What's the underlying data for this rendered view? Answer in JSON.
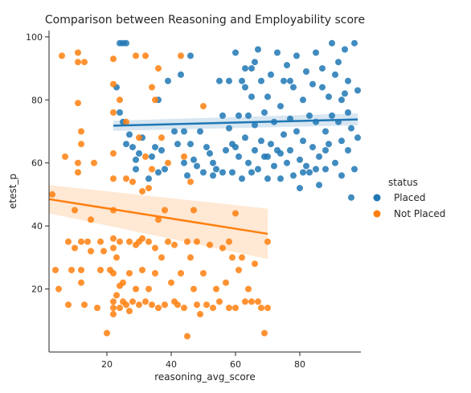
{
  "chart_data": {
    "type": "scatter",
    "title": "Comparison between Reasoning and Employability score",
    "xlabel": "reasoning_avg_score",
    "ylabel": "etest_p",
    "xlim": [
      2,
      99
    ],
    "ylim": [
      0,
      102
    ],
    "xticks": [
      20,
      40,
      60,
      80
    ],
    "yticks": [
      20,
      40,
      60,
      80,
      100
    ],
    "grid": false,
    "legend": {
      "title": "status",
      "placement": "right",
      "entries": [
        {
          "label": "Placed",
          "color": "#1f77b4"
        },
        {
          "label": "Not Placed",
          "color": "#ff7f0e"
        }
      ]
    },
    "series": [
      {
        "name": "Placed",
        "color": "#1f77b4",
        "regression": {
          "x": [
            22,
            98
          ],
          "y": [
            71.8,
            73.8
          ],
          "ci_low_start": 70.2,
          "ci_high_start": 73.4,
          "ci_low_end": 71.9,
          "ci_high_end": 75.7
        },
        "points": [
          [
            24,
            98
          ],
          [
            25,
            98
          ],
          [
            26,
            98
          ],
          [
            23,
            84
          ],
          [
            24,
            76
          ],
          [
            25,
            73
          ],
          [
            27,
            69
          ],
          [
            28,
            65
          ],
          [
            29,
            61
          ],
          [
            29,
            58
          ],
          [
            30,
            63
          ],
          [
            31,
            68
          ],
          [
            33,
            55
          ],
          [
            34,
            62
          ],
          [
            35,
            65
          ],
          [
            36,
            80
          ],
          [
            37,
            64
          ],
          [
            38,
            58
          ],
          [
            39,
            86
          ],
          [
            41,
            70
          ],
          [
            42,
            66
          ],
          [
            43,
            88
          ],
          [
            44,
            60
          ],
          [
            45,
            56
          ],
          [
            46,
            66
          ],
          [
            46,
            94
          ],
          [
            47,
            61
          ],
          [
            48,
            59
          ],
          [
            49,
            70
          ],
          [
            50,
            57
          ],
          [
            51,
            65
          ],
          [
            52,
            63
          ],
          [
            53,
            60
          ],
          [
            54,
            58
          ],
          [
            55,
            86
          ],
          [
            56,
            75
          ],
          [
            56,
            57
          ],
          [
            57,
            64
          ],
          [
            58,
            71
          ],
          [
            58,
            86
          ],
          [
            59,
            57
          ],
          [
            60,
            65
          ],
          [
            60,
            95
          ],
          [
            61,
            75
          ],
          [
            61,
            62
          ],
          [
            62,
            86
          ],
          [
            62,
            55
          ],
          [
            63,
            84
          ],
          [
            63,
            68
          ],
          [
            64,
            60
          ],
          [
            64,
            75
          ],
          [
            65,
            90
          ],
          [
            65,
            57
          ],
          [
            65,
            81
          ],
          [
            66,
            64
          ],
          [
            66,
            72
          ],
          [
            67,
            96
          ],
          [
            67,
            58
          ],
          [
            68,
            86
          ],
          [
            68,
            67
          ],
          [
            69,
            62
          ],
          [
            69,
            76
          ],
          [
            70,
            55
          ],
          [
            70,
            81
          ],
          [
            71,
            66
          ],
          [
            71,
            88
          ],
          [
            72,
            59
          ],
          [
            72,
            73
          ],
          [
            73,
            95
          ],
          [
            73,
            64
          ],
          [
            74,
            78
          ],
          [
            74,
            55
          ],
          [
            75,
            69
          ],
          [
            75,
            86
          ],
          [
            76,
            91
          ],
          [
            76,
            60
          ],
          [
            77,
            74
          ],
          [
            77,
            64
          ],
          [
            78,
            56
          ],
          [
            78,
            84
          ],
          [
            79,
            94
          ],
          [
            79,
            70
          ],
          [
            80,
            61
          ],
          [
            80,
            52
          ],
          [
            81,
            67
          ],
          [
            81,
            80
          ],
          [
            82,
            89
          ],
          [
            82,
            59
          ],
          [
            83,
            75
          ],
          [
            83,
            57
          ],
          [
            84,
            85
          ],
          [
            84,
            65
          ],
          [
            85,
            95
          ],
          [
            85,
            73
          ],
          [
            86,
            62
          ],
          [
            86,
            53
          ],
          [
            87,
            84
          ],
          [
            87,
            90
          ],
          [
            88,
            70
          ],
          [
            88,
            58
          ],
          [
            89,
            81
          ],
          [
            89,
            66
          ],
          [
            90,
            75
          ],
          [
            90,
            98
          ],
          [
            91,
            60
          ],
          [
            91,
            88
          ],
          [
            92,
            92
          ],
          [
            92,
            73
          ],
          [
            93,
            56
          ],
          [
            93,
            67
          ],
          [
            94,
            82
          ],
          [
            94,
            96
          ],
          [
            95,
            64
          ],
          [
            95,
            86
          ],
          [
            96,
            71
          ],
          [
            96,
            49
          ],
          [
            97,
            98
          ],
          [
            97,
            58
          ],
          [
            98,
            83
          ],
          [
            98,
            68
          ],
          [
            26,
            66
          ],
          [
            36,
            57
          ],
          [
            44,
            70
          ],
          [
            53,
            56
          ],
          [
            63,
            90
          ],
          [
            70,
            62
          ],
          [
            77,
            86
          ],
          [
            85,
            58
          ],
          [
            93,
            80
          ],
          [
            59,
            66
          ],
          [
            66,
            92
          ],
          [
            74,
            63
          ],
          [
            81,
            57
          ],
          [
            88,
            64
          ],
          [
            95,
            76
          ]
        ]
      },
      {
        "name": "Not Placed",
        "color": "#ff7f0e",
        "regression": {
          "x": [
            2,
            70
          ],
          "y": [
            48.5,
            37.5
          ],
          "ci_low_start": 44.0,
          "ci_high_start": 53.0,
          "ci_low_end": 29.5,
          "ci_high_end": 45.5
        },
        "points": [
          [
            3,
            50
          ],
          [
            4,
            26
          ],
          [
            5,
            20
          ],
          [
            6,
            94
          ],
          [
            7,
            62
          ],
          [
            8,
            35
          ],
          [
            8,
            15
          ],
          [
            9,
            26
          ],
          [
            10,
            45
          ],
          [
            10,
            33
          ],
          [
            11,
            95
          ],
          [
            11,
            92
          ],
          [
            11,
            79
          ],
          [
            11,
            60
          ],
          [
            11,
            57
          ],
          [
            12,
            70
          ],
          [
            12,
            66
          ],
          [
            12,
            35
          ],
          [
            12,
            26
          ],
          [
            12,
            22
          ],
          [
            13,
            15
          ],
          [
            14,
            35
          ],
          [
            15,
            32
          ],
          [
            16,
            60
          ],
          [
            17,
            14
          ],
          [
            18,
            35
          ],
          [
            19,
            32
          ],
          [
            20,
            6
          ],
          [
            21,
            26
          ],
          [
            22,
            93
          ],
          [
            22,
            85
          ],
          [
            22,
            76
          ],
          [
            22,
            63
          ],
          [
            22,
            55
          ],
          [
            22,
            45
          ],
          [
            22,
            36
          ],
          [
            22,
            33
          ],
          [
            22,
            25
          ],
          [
            22,
            16
          ],
          [
            22,
            14
          ],
          [
            22,
            12
          ],
          [
            23,
            18
          ],
          [
            23,
            30
          ],
          [
            24,
            80
          ],
          [
            24,
            35
          ],
          [
            24,
            21
          ],
          [
            24,
            14
          ],
          [
            25,
            22
          ],
          [
            25,
            16
          ],
          [
            26,
            73
          ],
          [
            26,
            55
          ],
          [
            26,
            15
          ],
          [
            27,
            35
          ],
          [
            27,
            25
          ],
          [
            27,
            13
          ],
          [
            28,
            54
          ],
          [
            28,
            16
          ],
          [
            29,
            94
          ],
          [
            29,
            34
          ],
          [
            29,
            20
          ],
          [
            30,
            68
          ],
          [
            30,
            35
          ],
          [
            30,
            15
          ],
          [
            31,
            51
          ],
          [
            31,
            36
          ],
          [
            31,
            26
          ],
          [
            32,
            94
          ],
          [
            32,
            62
          ],
          [
            32,
            16
          ],
          [
            33,
            35
          ],
          [
            33,
            20
          ],
          [
            34,
            84
          ],
          [
            34,
            58
          ],
          [
            34,
            15
          ],
          [
            35,
            80
          ],
          [
            35,
            33
          ],
          [
            35,
            25
          ],
          [
            36,
            90
          ],
          [
            36,
            42
          ],
          [
            36,
            14
          ],
          [
            37,
            68
          ],
          [
            37,
            30
          ],
          [
            38,
            45
          ],
          [
            38,
            15
          ],
          [
            39,
            60
          ],
          [
            39,
            35
          ],
          [
            40,
            22
          ],
          [
            41,
            34
          ],
          [
            42,
            15
          ],
          [
            43,
            94
          ],
          [
            43,
            25
          ],
          [
            44,
            62
          ],
          [
            44,
            14
          ],
          [
            45,
            35
          ],
          [
            45,
            5
          ],
          [
            46,
            30
          ],
          [
            46,
            54
          ],
          [
            47,
            20
          ],
          [
            48,
            35
          ],
          [
            48,
            15
          ],
          [
            49,
            12
          ],
          [
            50,
            78
          ],
          [
            50,
            25
          ],
          [
            52,
            34
          ],
          [
            53,
            14
          ],
          [
            54,
            20
          ],
          [
            55,
            16
          ],
          [
            56,
            33
          ],
          [
            57,
            22
          ],
          [
            58,
            35
          ],
          [
            58,
            14
          ],
          [
            59,
            30
          ],
          [
            60,
            14
          ],
          [
            61,
            26
          ],
          [
            62,
            30
          ],
          [
            63,
            16
          ],
          [
            64,
            20
          ],
          [
            65,
            16
          ],
          [
            66,
            28
          ],
          [
            67,
            16
          ],
          [
            68,
            14
          ],
          [
            69,
            6
          ],
          [
            70,
            35
          ],
          [
            70,
            14
          ],
          [
            13,
            92
          ],
          [
            15,
            42
          ],
          [
            18,
            26
          ],
          [
            33,
            52
          ],
          [
            41,
            16
          ],
          [
            47,
            45
          ],
          [
            51,
            15
          ],
          [
            60,
            44
          ]
        ]
      }
    ]
  }
}
